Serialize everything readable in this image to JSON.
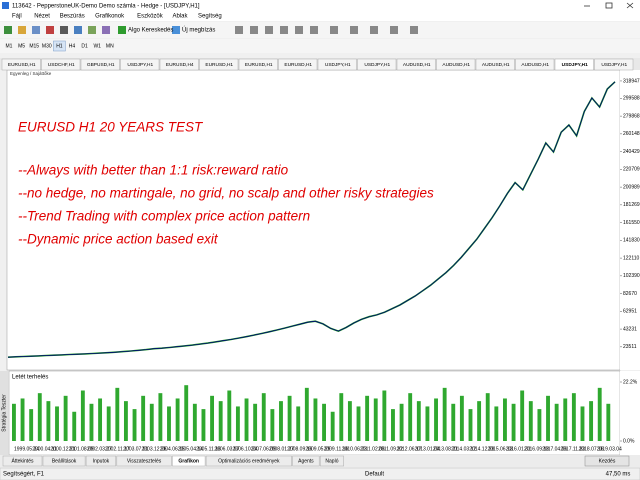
{
  "window": {
    "title": "113642 - PepperstoneUK-Demo Demo számla - Hedge - [USDJPY,H1]",
    "menu": [
      "Fájl",
      "Nézet",
      "Beszúrás",
      "Grafikonok",
      "Eszközök",
      "Ablak",
      "Segítség"
    ],
    "toolbar": [
      "Algo Kereskedés",
      "Új megbízás"
    ],
    "timeframes": [
      "M1",
      "M5",
      "M15",
      "M30",
      "H1",
      "H4",
      "D1",
      "W1",
      "MN"
    ],
    "chart_tabs": [
      "EURUSD,H1",
      "USDCHF,H1",
      "GBPUSD,H1",
      "USDJPY,H1",
      "EURUSD,H4",
      "EURUSD,H1",
      "EURUSD,H1",
      "EURUSD,H1",
      "USDJPY,H1",
      "USDJPY,H1",
      "AUDUSD,H1",
      "AUDUSD,H1",
      "AUDUSD,H1",
      "AUDUSD,H1",
      "USDJPY,H1",
      "USDJPY,H1"
    ]
  },
  "chart_data": {
    "type": "line",
    "legend": "Egyenleg / Sajáttőke",
    "overlay_text": [
      "EURUSD H1 20 YEARS TEST",
      "--Always with better than 1:1 risk:reward ratio",
      "--no hedge, no martingale, no grid, no scalp and other risky strategies",
      "--Trend Trading with complex price action pattern",
      "--Dynamic price action based exit"
    ],
    "series": [
      {
        "color": "#1a9c1a",
        "values": [
          12000,
          12400,
          12800,
          13100,
          13500,
          13900,
          14200,
          14600,
          15000,
          15300,
          15700,
          16100,
          16500,
          17000,
          17600,
          18200,
          18900,
          19700,
          20500,
          21400,
          22000,
          22800,
          23700,
          24600,
          25500,
          26600,
          27700,
          29000,
          30300,
          31700,
          33200,
          34800,
          36500,
          38300,
          40200,
          42200,
          44300,
          46500,
          48700,
          50900,
          52000,
          49000,
          44000,
          41000,
          45000,
          50000,
          54000,
          57000,
          59000,
          62000,
          66000,
          70000,
          75000,
          80000,
          86000,
          92000,
          99000,
          106000,
          114000,
          123000,
          133000,
          143000,
          155000,
          167000,
          180000,
          194000,
          206000,
          198000,
          215000,
          232000,
          250000,
          240000,
          262000,
          270000,
          258000,
          285000,
          300000,
          290000,
          310000,
          318000
        ]
      }
    ],
    "ylim": [
      0,
      340000
    ],
    "yticks": [
      318947,
      299588,
      279868,
      260148,
      240429,
      220709,
      200989,
      181269,
      161550,
      141830,
      122110,
      102390,
      82670,
      62951,
      43231,
      23511
    ],
    "x_labels": [
      "1999.05.24",
      "2000.04.11",
      "2000.12.21",
      "2001.08.09",
      "2002.03.27",
      "2002.11.17",
      "2003.07.01",
      "2003.12.26",
      "2004.06.15",
      "2005.04.14",
      "2005.11.16",
      "2006.03.07",
      "2006.10.24",
      "2007.06.09",
      "2008.01.27",
      "2008.09.16",
      "2009.05.29",
      "2009.11.16",
      "2010.06.23",
      "2011.02.06",
      "2011.09.22",
      "2012.06.17",
      "2013.01.04",
      "2013.08.21",
      "2014.03.12",
      "2014.12.28",
      "2015.06.13",
      "2016.01.31",
      "2016.09.18",
      "2017.04.06",
      "2017.11.23",
      "2018.07.16",
      "2019.03.04"
    ]
  },
  "load_panel": {
    "title": "Letét terhelés",
    "values": [
      14,
      16,
      12,
      18,
      15,
      13,
      17,
      11,
      19,
      14,
      16,
      13,
      20,
      15,
      12,
      17,
      14,
      18,
      13,
      16,
      21,
      14,
      12,
      17,
      15,
      19,
      13,
      16,
      14,
      18,
      12,
      15,
      17,
      13,
      20,
      16,
      14,
      11,
      18,
      15,
      13,
      17,
      16,
      19,
      12,
      14,
      18,
      15,
      13,
      16,
      20,
      14,
      17,
      12,
      15,
      18,
      13,
      16,
      14,
      19,
      15,
      12,
      17,
      14,
      16,
      18,
      13,
      15,
      20,
      14
    ],
    "ylim": [
      0,
      22.2
    ],
    "yticks": [
      {
        "value": 22.2,
        "label": "22.2%"
      },
      {
        "value": 0,
        "label": "0.0%"
      }
    ]
  },
  "tester": {
    "side_label": "Stratégia Teszter",
    "tabs": [
      "Áttekintés",
      "Beállítások",
      "Inputok",
      "Visszatesztelés",
      "Grafikon",
      "Optimalizációs eredmények",
      "Agents",
      "Napló"
    ],
    "start_button": "Kezdés"
  },
  "status": {
    "help": "Segítségért, F1",
    "profile": "Default",
    "ping": "47,50 ms"
  }
}
